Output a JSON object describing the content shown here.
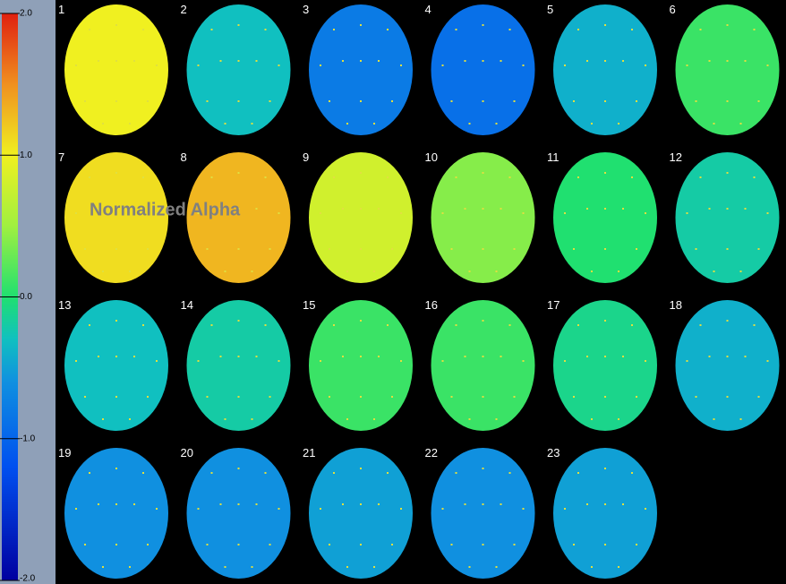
{
  "colorbar": {
    "ticks": [
      {
        "value": 2,
        "label": "2.0"
      },
      {
        "value": 1,
        "label": "1.0"
      },
      {
        "value": 0,
        "label": "0.0"
      },
      {
        "value": -1,
        "label": "-1.0"
      },
      {
        "value": -2,
        "label": "-2.0"
      }
    ],
    "range": [
      -2,
      2
    ]
  },
  "overlay_title": "Normalized Alpha",
  "maps": [
    {
      "label": "1",
      "level": 1.0
    },
    {
      "label": "2",
      "level": -0.3
    },
    {
      "label": "3",
      "level": -0.8
    },
    {
      "label": "4",
      "level": -0.9
    },
    {
      "label": "5",
      "level": -0.4
    },
    {
      "label": "6",
      "level": 0.1
    },
    {
      "label": "7",
      "level": 1.1
    },
    {
      "label": "8",
      "level": 1.3
    },
    {
      "label": "9",
      "level": 0.8
    },
    {
      "label": "10",
      "level": 0.4
    },
    {
      "label": "11",
      "level": 0.0
    },
    {
      "label": "12",
      "level": -0.2
    },
    {
      "label": "13",
      "level": -0.3
    },
    {
      "label": "14",
      "level": -0.2
    },
    {
      "label": "15",
      "level": 0.1
    },
    {
      "label": "16",
      "level": 0.1
    },
    {
      "label": "17",
      "level": -0.1
    },
    {
      "label": "18",
      "level": -0.4
    },
    {
      "label": "19",
      "level": -0.6
    },
    {
      "label": "20",
      "level": -0.6
    },
    {
      "label": "21",
      "level": -0.5
    },
    {
      "label": "22",
      "level": -0.6
    },
    {
      "label": "23",
      "level": -0.5
    }
  ]
}
